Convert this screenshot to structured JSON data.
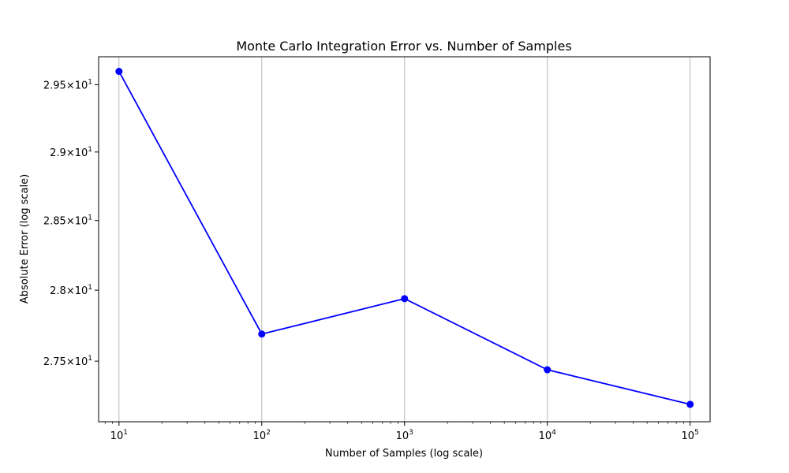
{
  "chart_data": {
    "type": "line",
    "title": "Monte Carlo Integration Error vs. Number of Samples",
    "xlabel": "Number of Samples (log scale)",
    "ylabel": "Absolute Error (log scale)",
    "xscale": "log",
    "yscale": "log",
    "xlim": [
      7.2,
      138000
    ],
    "ylim": [
      27.08,
      29.71
    ],
    "grid": "vertical",
    "legend": "none",
    "x": [
      10,
      100,
      1000,
      10000,
      100000
    ],
    "series": [
      {
        "values": [
          29.6,
          27.69,
          27.94,
          27.44,
          27.2
        ],
        "color": "#0000ff",
        "marker": "circle"
      }
    ],
    "x_ticks": [
      {
        "value": 10,
        "base": "10",
        "exp": "1"
      },
      {
        "value": 100,
        "base": "10",
        "exp": "2"
      },
      {
        "value": 1000,
        "base": "10",
        "exp": "3"
      },
      {
        "value": 10000,
        "base": "10",
        "exp": "4"
      },
      {
        "value": 100000,
        "base": "10",
        "exp": "5"
      }
    ],
    "y_ticks": [
      {
        "value": 27.5,
        "mant": "2.75",
        "base": "10",
        "exp": "1"
      },
      {
        "value": 28.0,
        "mant": "2.8",
        "base": "10",
        "exp": "1"
      },
      {
        "value": 28.5,
        "mant": "2.85",
        "base": "10",
        "exp": "1"
      },
      {
        "value": 29.0,
        "mant": "2.9",
        "base": "10",
        "exp": "1"
      },
      {
        "value": 29.5,
        "mant": "2.95",
        "base": "10",
        "exp": "1"
      }
    ],
    "colors": {
      "line": "#0000ff",
      "grid": "#b0b0b0",
      "axes": "#000000"
    }
  }
}
